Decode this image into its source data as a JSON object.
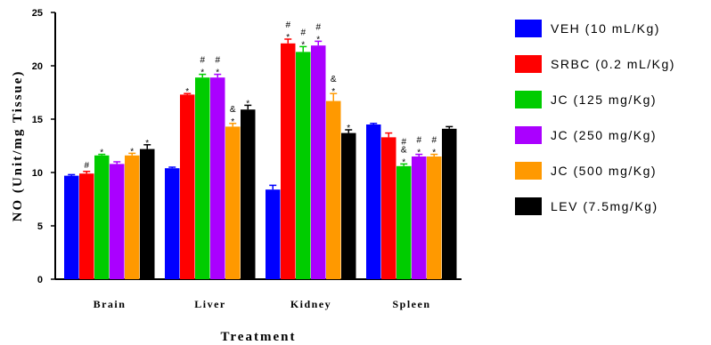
{
  "chart_data": {
    "type": "bar",
    "xlabel": "Treatment",
    "ylabel": "NO (Unit/mg Tissue)",
    "ylim": [
      0,
      25
    ],
    "yticks": [
      "0",
      "5",
      "10",
      "15",
      "20",
      "25"
    ],
    "categories": [
      "Brain",
      "Liver",
      "Kidney",
      "Spleen"
    ],
    "legend_position": "right",
    "series": [
      {
        "name": "VEH (10 mL/Kg)",
        "color": "#0000ff",
        "values": [
          9.7,
          10.4,
          8.4,
          14.5
        ],
        "errors": [
          0.1,
          0.1,
          0.4,
          0.1
        ],
        "marks": [
          [],
          [],
          [],
          []
        ]
      },
      {
        "name": "SRBC (0.2 mL/Kg)",
        "color": "#ff0000",
        "values": [
          9.9,
          17.3,
          22.1,
          13.3
        ],
        "errors": [
          0.2,
          0.1,
          0.4,
          0.4
        ],
        "marks": [
          [
            "#"
          ],
          [
            "*"
          ],
          [
            "*",
            "#"
          ],
          []
        ]
      },
      {
        "name": "JC (125 mg/Kg)",
        "color": "#00cc00",
        "values": [
          11.6,
          18.9,
          21.3,
          10.6
        ],
        "errors": [
          0.1,
          0.3,
          0.5,
          0.2
        ],
        "marks": [
          [
            "*"
          ],
          [
            "*",
            "#"
          ],
          [
            "*",
            "#"
          ],
          [
            "*",
            "&",
            "#"
          ]
        ]
      },
      {
        "name": "JC (250 mg/Kg)",
        "color": "#aa00ff",
        "values": [
          10.8,
          18.9,
          21.9,
          11.5
        ],
        "errors": [
          0.2,
          0.3,
          0.4,
          0.2
        ],
        "marks": [
          [],
          [
            "*",
            "#"
          ],
          [
            "*",
            "#"
          ],
          [
            "*",
            "#"
          ]
        ]
      },
      {
        "name": "JC (500 mg/Kg)",
        "color": "#ff9900",
        "values": [
          11.6,
          14.3,
          16.7,
          11.5
        ],
        "errors": [
          0.2,
          0.3,
          0.7,
          0.2
        ],
        "marks": [
          [
            "*"
          ],
          [
            "*",
            "&"
          ],
          [
            "*",
            "&"
          ],
          [
            "*",
            "#"
          ]
        ]
      },
      {
        "name": "LEV (7.5mg/Kg)",
        "color": "#000000",
        "values": [
          12.2,
          15.9,
          13.7,
          14.1
        ],
        "errors": [
          0.4,
          0.4,
          0.3,
          0.2
        ],
        "marks": [
          [
            "*"
          ],
          [
            "*"
          ],
          [
            "*"
          ],
          []
        ]
      }
    ]
  }
}
